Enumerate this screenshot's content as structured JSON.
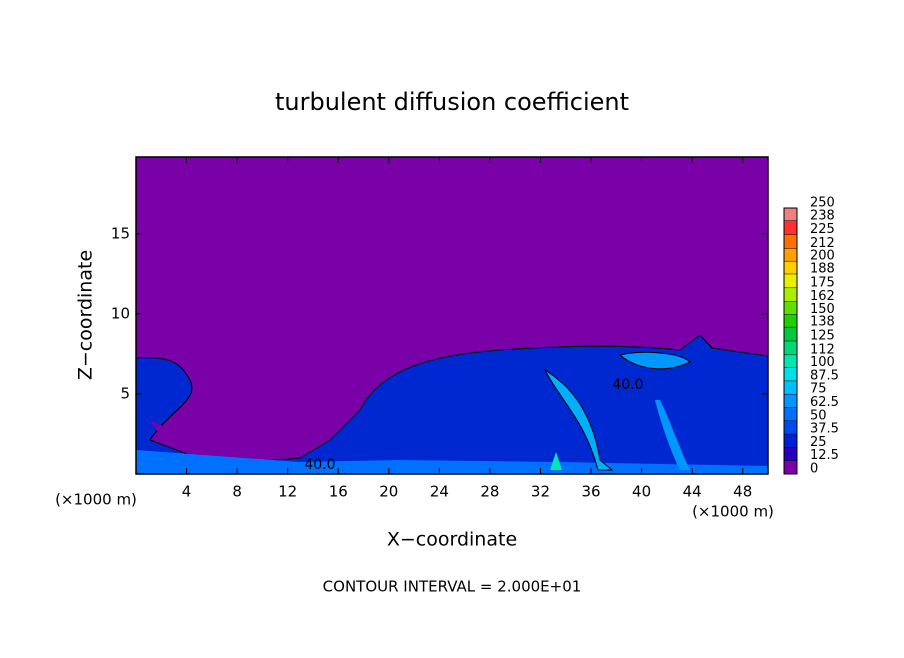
{
  "chart_data": {
    "type": "contour",
    "title": "turbulent diffusion coefficient",
    "xlabel": "X−coordinate",
    "ylabel": "Z−coordinate",
    "x_unit": "(×1000 m)",
    "footer": "CONTOUR INTERVAL = 2.000E+01",
    "xlim": [
      0,
      50
    ],
    "xticks": [
      4,
      8,
      12,
      16,
      20,
      24,
      28,
      32,
      36,
      40,
      44,
      48
    ],
    "ylim": [
      0,
      19.8
    ],
    "yticks": [
      5,
      10,
      15
    ],
    "contour_labels": [
      "40.0",
      "40.0"
    ],
    "background_color": "#7a00a8",
    "colorbar": {
      "levels": [
        0,
        12.5,
        25,
        37.5,
        50,
        62.5,
        75,
        87.5,
        100,
        112,
        125,
        138,
        150,
        162,
        175,
        188,
        200,
        212,
        225,
        238,
        250
      ],
      "colors": [
        "#7a00a8",
        "#2a00c0",
        "#0020d8",
        "#0048f0",
        "#0070ff",
        "#0098ff",
        "#00c0ff",
        "#00e0e8",
        "#00e8b0",
        "#00d878",
        "#00c840",
        "#20d000",
        "#60e000",
        "#a8f000",
        "#e8f000",
        "#ffd000",
        "#ffa000",
        "#ff7000",
        "#ff3030",
        "#f08080"
      ]
    }
  }
}
